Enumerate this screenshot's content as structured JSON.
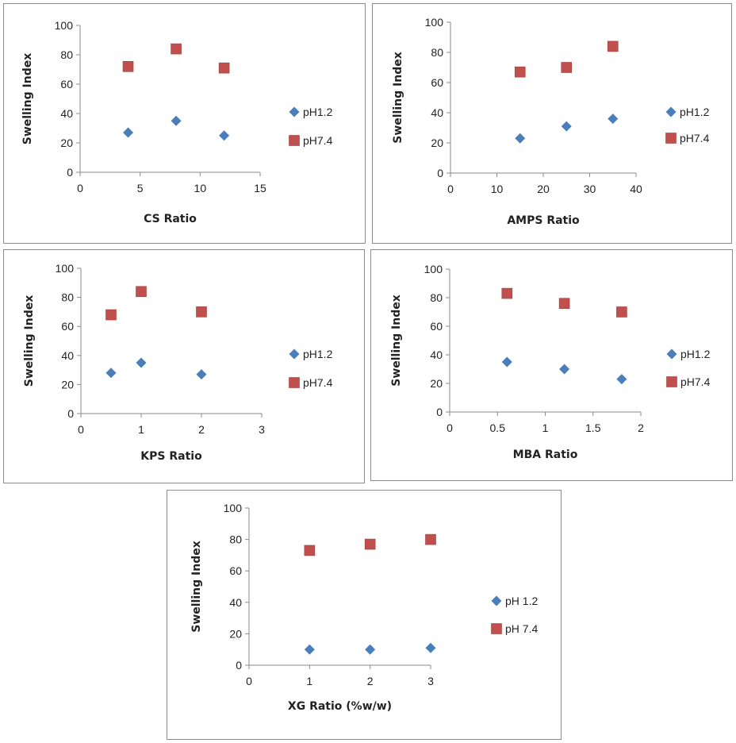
{
  "chart_data": [
    {
      "type": "scatter",
      "xlabel": "CS Ratio",
      "ylabel": "Swelling Index",
      "xlim": [
        0,
        15
      ],
      "xticks": [
        0,
        5,
        10,
        15
      ],
      "ylim": [
        0,
        100
      ],
      "yticks": [
        0,
        20,
        40,
        60,
        80,
        100
      ],
      "series": [
        {
          "name": "pH1.2",
          "marker": "diamond",
          "color": "#4a7ebb",
          "x": [
            4,
            8,
            12
          ],
          "y": [
            27,
            35,
            25
          ]
        },
        {
          "name": "pH7.4",
          "marker": "square",
          "color": "#c0504d",
          "x": [
            4,
            8,
            12
          ],
          "y": [
            72,
            84,
            71
          ]
        }
      ]
    },
    {
      "type": "scatter",
      "xlabel": "AMPS Ratio",
      "ylabel": "Swelling Index",
      "xlim": [
        0,
        40
      ],
      "xticks": [
        0,
        10,
        20,
        30,
        40
      ],
      "ylim": [
        0,
        100
      ],
      "yticks": [
        0,
        20,
        40,
        60,
        80,
        100
      ],
      "series": [
        {
          "name": "pH1.2",
          "marker": "diamond",
          "color": "#4a7ebb",
          "x": [
            15,
            25,
            35
          ],
          "y": [
            23,
            31,
            36
          ]
        },
        {
          "name": "pH7.4",
          "marker": "square",
          "color": "#c0504d",
          "x": [
            15,
            25,
            35
          ],
          "y": [
            67,
            70,
            84
          ]
        }
      ]
    },
    {
      "type": "scatter",
      "xlabel": "KPS Ratio",
      "ylabel": "Swelling Index",
      "xlim": [
        0,
        3
      ],
      "xticks": [
        0,
        1,
        2,
        3
      ],
      "ylim": [
        0,
        100
      ],
      "yticks": [
        0,
        20,
        40,
        60,
        80,
        100
      ],
      "series": [
        {
          "name": "pH1.2",
          "marker": "diamond",
          "color": "#4a7ebb",
          "x": [
            0.5,
            1,
            2
          ],
          "y": [
            28,
            35,
            27
          ]
        },
        {
          "name": "pH7.4",
          "marker": "square",
          "color": "#c0504d",
          "x": [
            0.5,
            1,
            2
          ],
          "y": [
            68,
            84,
            70
          ]
        }
      ]
    },
    {
      "type": "scatter",
      "xlabel": "MBA Ratio",
      "ylabel": "Swelling Index",
      "xlim": [
        0,
        2
      ],
      "xticks": [
        0,
        0.5,
        1,
        1.5,
        2
      ],
      "ylim": [
        0,
        100
      ],
      "yticks": [
        0,
        20,
        40,
        60,
        80,
        100
      ],
      "series": [
        {
          "name": "pH1.2",
          "marker": "diamond",
          "color": "#4a7ebb",
          "x": [
            0.6,
            1.2,
            1.8
          ],
          "y": [
            35,
            30,
            23
          ]
        },
        {
          "name": "pH7.4",
          "marker": "square",
          "color": "#c0504d",
          "x": [
            0.6,
            1.2,
            1.8
          ],
          "y": [
            83,
            76,
            70
          ]
        }
      ]
    },
    {
      "type": "scatter",
      "xlabel": "XG Ratio (%w/w)",
      "ylabel": "Swelling Index",
      "xlim": [
        0,
        3
      ],
      "xticks": [
        0,
        1,
        2,
        3
      ],
      "ylim": [
        0,
        100
      ],
      "yticks": [
        0,
        20,
        40,
        60,
        80,
        100
      ],
      "series": [
        {
          "name": "pH 1.2",
          "marker": "diamond",
          "color": "#4a7ebb",
          "x": [
            1,
            2,
            3
          ],
          "y": [
            10,
            10,
            11
          ]
        },
        {
          "name": "pH 7.4",
          "marker": "square",
          "color": "#c0504d",
          "x": [
            1,
            2,
            3
          ],
          "y": [
            73,
            77,
            80
          ]
        }
      ]
    }
  ]
}
